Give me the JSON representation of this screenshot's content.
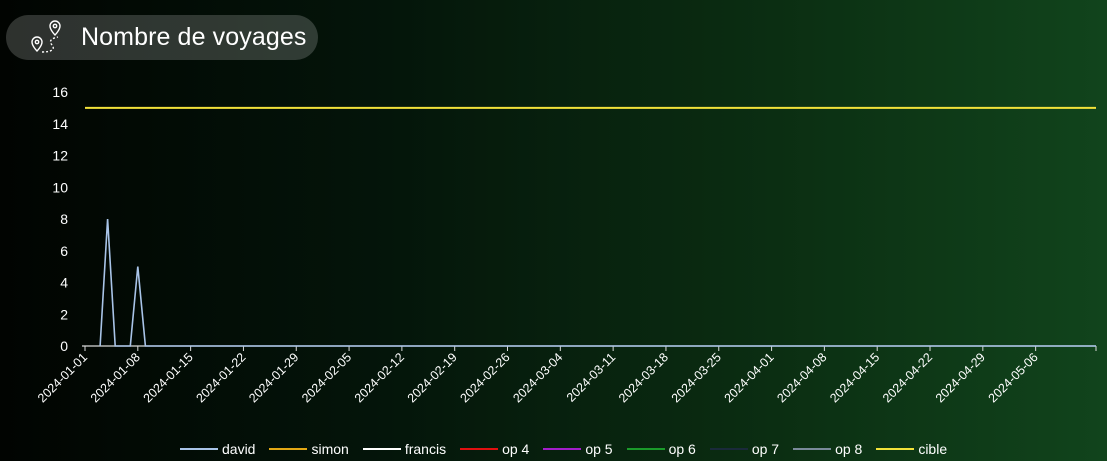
{
  "title": "Nombre de voyages",
  "icon": "route-pins-icon",
  "chart_data": {
    "type": "line",
    "title": "Nombre de voyages",
    "xlabel": "",
    "ylabel": "",
    "x_start": "2024-01-01",
    "x_end": "2024-05-14",
    "ylim": [
      0,
      16
    ],
    "yticks": [
      0,
      2,
      4,
      6,
      8,
      10,
      12,
      14,
      16
    ],
    "xticks": [
      "2024-01-01",
      "2024-01-08",
      "2024-01-15",
      "2024-01-22",
      "2024-01-29",
      "2024-02-05",
      "2024-02-12",
      "2024-02-19",
      "2024-02-26",
      "2024-03-04",
      "2024-03-11",
      "2024-03-18",
      "2024-03-25",
      "2024-04-01",
      "2024-04-08",
      "2024-04-15",
      "2024-04-22",
      "2024-04-29",
      "2024-05-06"
    ],
    "grid": false,
    "legend_position": "bottom",
    "series": [
      {
        "name": "david",
        "color": "#a9c4e8",
        "points": [
          [
            "2024-01-03",
            0
          ],
          [
            "2024-01-04",
            8
          ],
          [
            "2024-01-05",
            0
          ],
          [
            "2024-01-07",
            0
          ],
          [
            "2024-01-08",
            5
          ],
          [
            "2024-01-09",
            0
          ],
          [
            "2024-05-14",
            0
          ]
        ]
      },
      {
        "name": "simon",
        "color": "#e3a815",
        "points": []
      },
      {
        "name": "francis",
        "color": "#ffffff",
        "points": []
      },
      {
        "name": "op 4",
        "color": "#e01010",
        "points": []
      },
      {
        "name": "op 5",
        "color": "#a21ec9",
        "points": []
      },
      {
        "name": "op 6",
        "color": "#1a9a2a",
        "points": []
      },
      {
        "name": "op 7",
        "color": "#1a2a3a",
        "points": []
      },
      {
        "name": "op 8",
        "color": "#7a8a9a",
        "points": []
      },
      {
        "name": "cible",
        "color": "#f2e23a",
        "points": [
          [
            "2024-01-01",
            15
          ],
          [
            "2024-05-14",
            15
          ]
        ]
      }
    ]
  }
}
